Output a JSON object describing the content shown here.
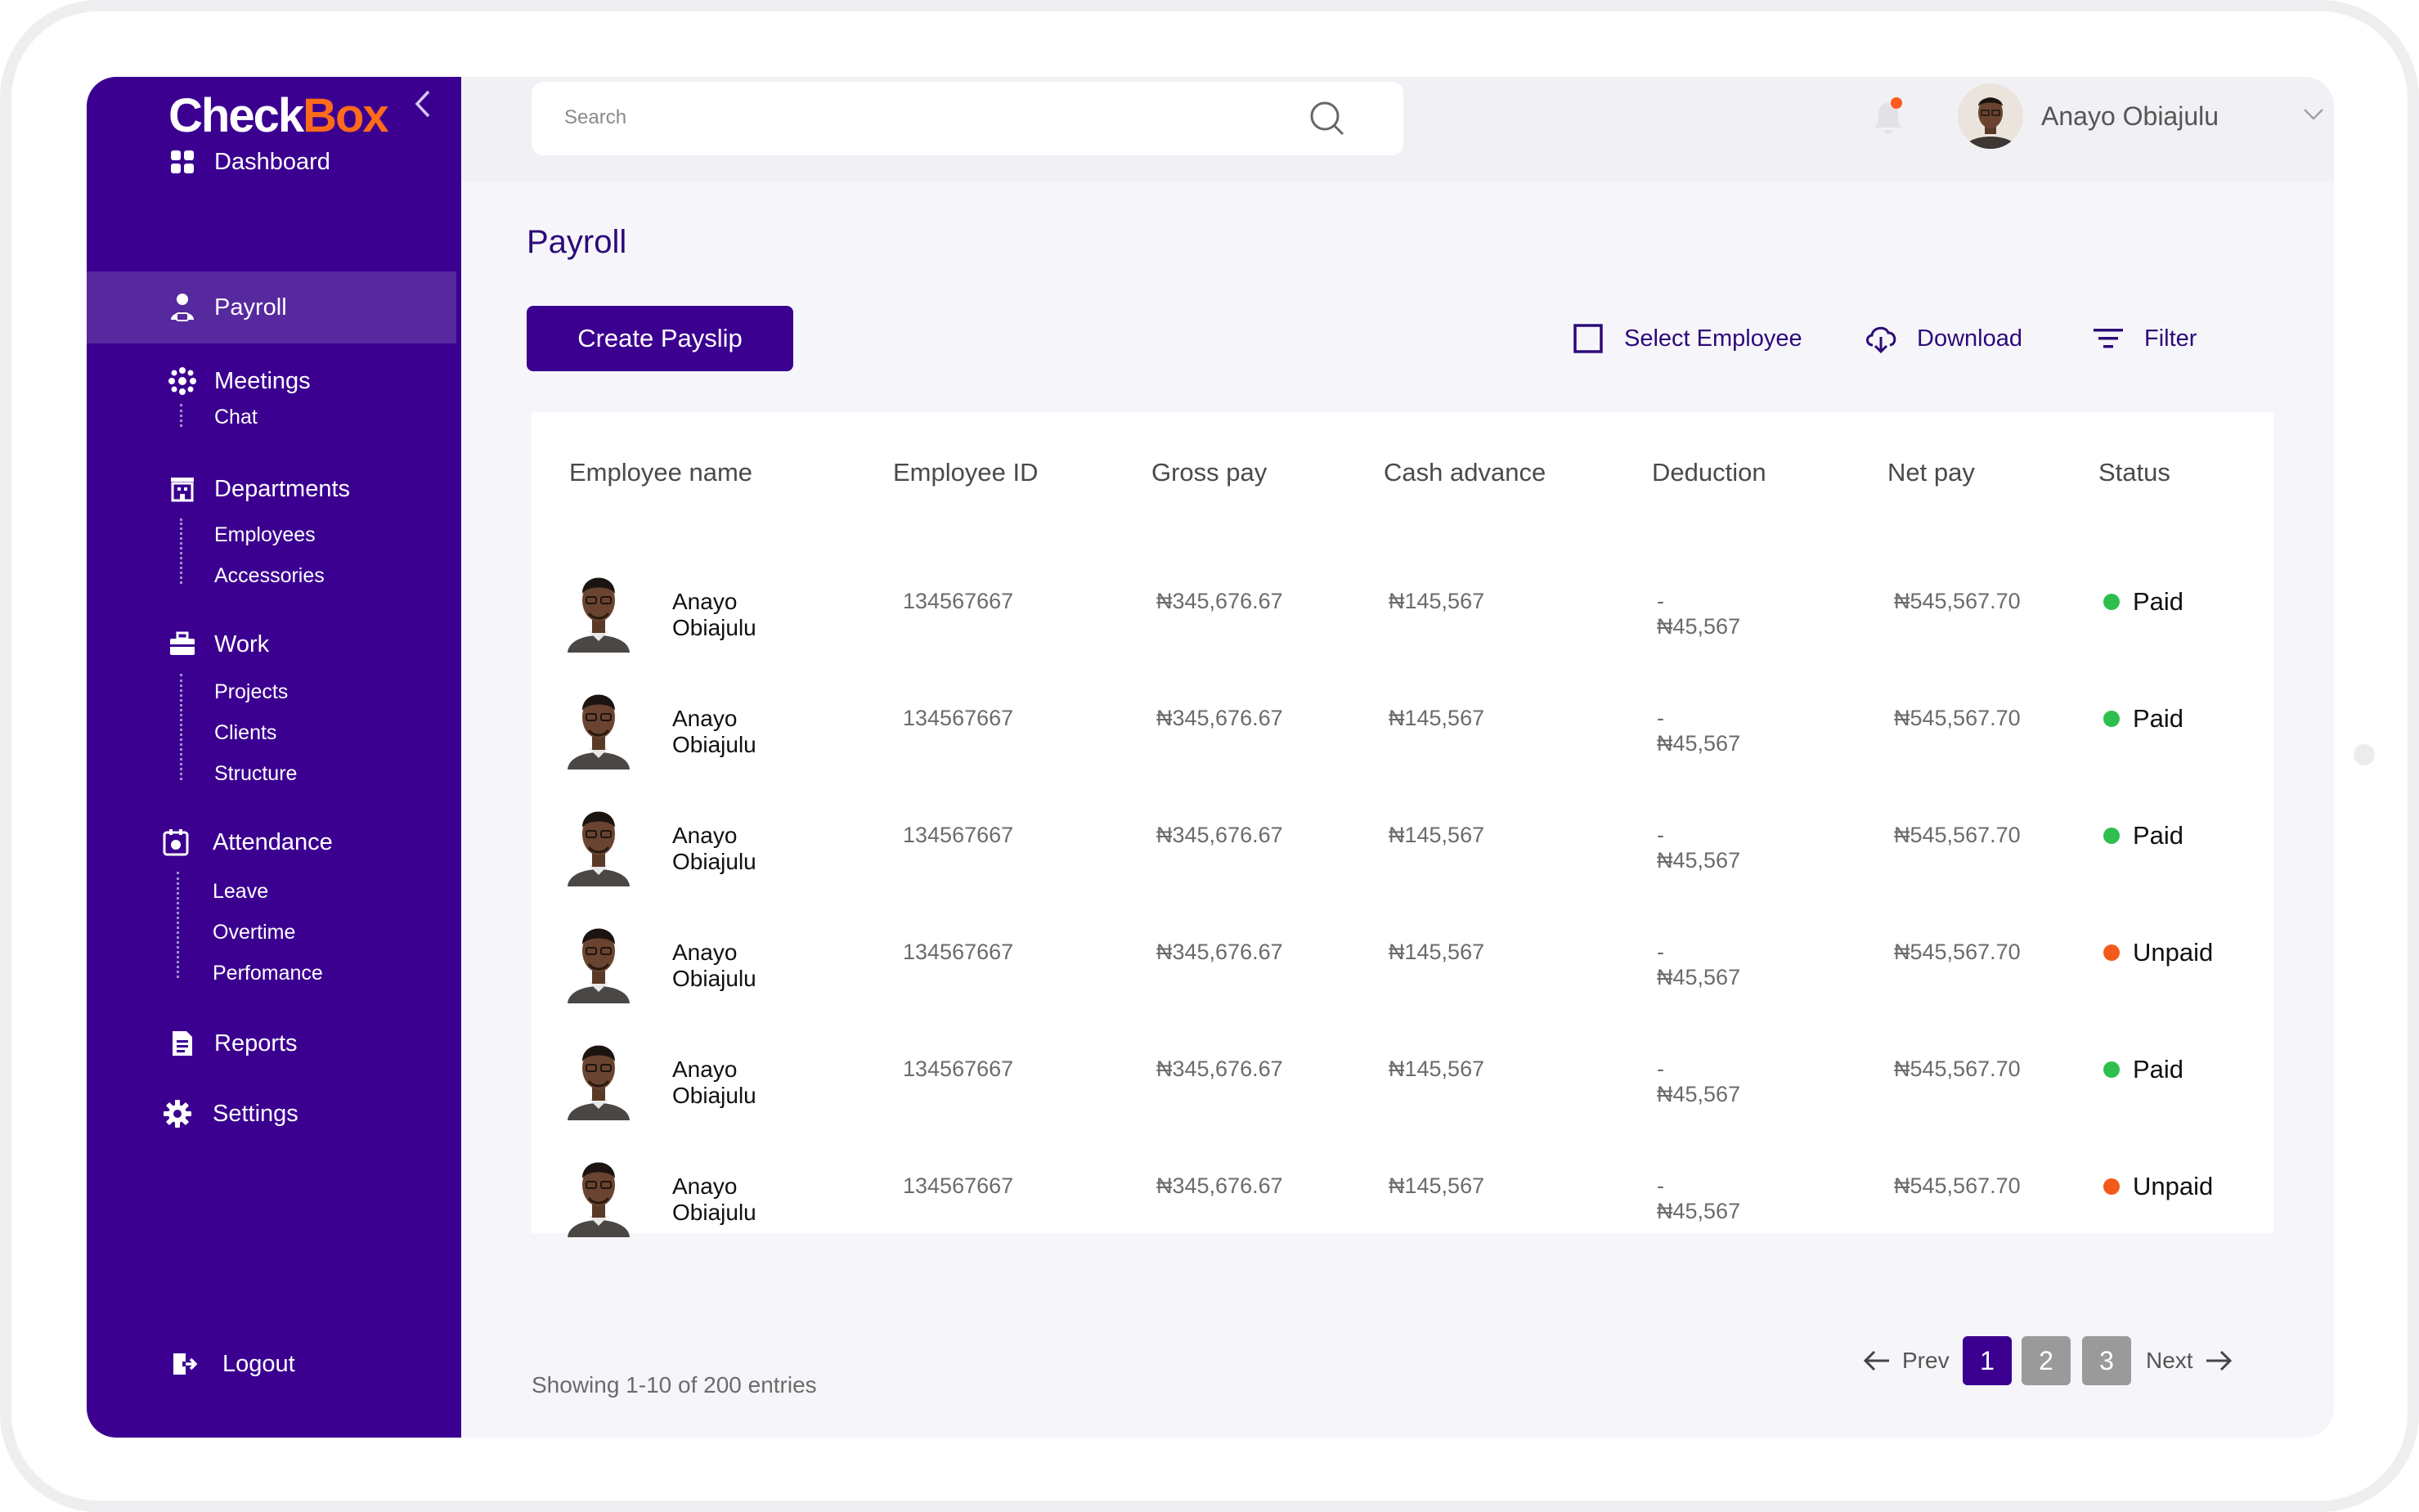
{
  "app": {
    "logo_part1": "Check",
    "logo_part2": "Box",
    "collapse_icon": "chevron-left-icon"
  },
  "sidebar": {
    "sections": [
      {
        "label": "Dashboard",
        "icon": "grid-icon"
      },
      {
        "label": "Payroll",
        "icon": "user-money-icon",
        "active": true
      },
      {
        "label": "Meetings",
        "icon": "meetings-icon",
        "sub": [
          "Chat"
        ]
      },
      {
        "label": "Departments",
        "icon": "building-icon",
        "sub": [
          "Employees",
          "Accessories"
        ]
      },
      {
        "label": "Work",
        "icon": "briefcase-icon",
        "sub": [
          "Projects",
          "Clients",
          "Structure"
        ]
      },
      {
        "label": "Attendance",
        "icon": "calendar-icon",
        "sub": [
          "Leave",
          "Overtime",
          "Perfomance"
        ]
      },
      {
        "label": "Reports",
        "icon": "report-icon"
      },
      {
        "label": "Settings",
        "icon": "gear-icon"
      }
    ],
    "logout": "Logout"
  },
  "topbar": {
    "search_placeholder": "Search",
    "user_name": "Anayo Obiajulu",
    "colors": {
      "notification_dot": "#ff5a1f"
    }
  },
  "main": {
    "title": "Payroll",
    "create_label": "Create Payslip",
    "select_label": "Select Employee",
    "download_label": "Download",
    "filter_label": "Filter",
    "columns": [
      "Employee name",
      "Employee ID",
      "Gross pay",
      "Cash advance",
      "Deduction",
      "Net pay",
      "Status"
    ],
    "rows": [
      {
        "name": "Anayo Obiajulu",
        "id": "134567667",
        "gross": "₦345,676.67",
        "cash": "₦145,567",
        "deduction": "- ₦45,567",
        "net": "₦545,567.70",
        "status": "Paid"
      },
      {
        "name": "Anayo Obiajulu",
        "id": "134567667",
        "gross": "₦345,676.67",
        "cash": "₦145,567",
        "deduction": "- ₦45,567",
        "net": "₦545,567.70",
        "status": "Paid"
      },
      {
        "name": "Anayo Obiajulu",
        "id": "134567667",
        "gross": "₦345,676.67",
        "cash": "₦145,567",
        "deduction": "- ₦45,567",
        "net": "₦545,567.70",
        "status": "Paid"
      },
      {
        "name": "Anayo Obiajulu",
        "id": "134567667",
        "gross": "₦345,676.67",
        "cash": "₦145,567",
        "deduction": "- ₦45,567",
        "net": "₦545,567.70",
        "status": "Unpaid"
      },
      {
        "name": "Anayo Obiajulu",
        "id": "134567667",
        "gross": "₦345,676.67",
        "cash": "₦145,567",
        "deduction": "- ₦45,567",
        "net": "₦545,567.70",
        "status": "Paid"
      },
      {
        "name": "Anayo Obiajulu",
        "id": "134567667",
        "gross": "₦345,676.67",
        "cash": "₦145,567",
        "deduction": "- ₦45,567",
        "net": "₦545,567.70",
        "status": "Unpaid"
      }
    ],
    "status_colors": {
      "Paid": "#2ebf4f",
      "Unpaid": "#f25a1c"
    },
    "entries_text": "Showing 1-10 of 200 entries",
    "pagination": {
      "prev": "Prev",
      "next": "Next",
      "pages": [
        "1",
        "2",
        "3"
      ],
      "current": "1",
      "colors": {
        "current": "#3b0090",
        "other": "#9a9a9a"
      }
    }
  }
}
